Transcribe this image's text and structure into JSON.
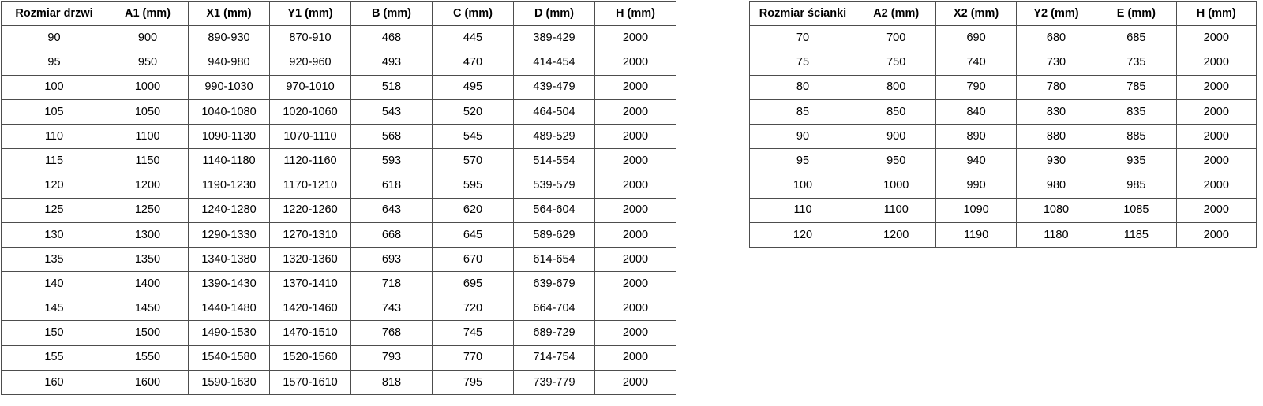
{
  "colors": {
    "background": "#ffffff",
    "border": "#4d4d4d",
    "text": "#000000"
  },
  "tables": {
    "doors": {
      "headers": [
        "Rozmiar drzwi",
        "A1 (mm)",
        "X1 (mm)",
        "Y1 (mm)",
        "B (mm)",
        "C (mm)",
        "D (mm)",
        "H (mm)"
      ],
      "rows": [
        [
          "90",
          "900",
          "890-930",
          "870-910",
          "468",
          "445",
          "389-429",
          "2000"
        ],
        [
          "95",
          "950",
          "940-980",
          "920-960",
          "493",
          "470",
          "414-454",
          "2000"
        ],
        [
          "100",
          "1000",
          "990-1030",
          "970-1010",
          "518",
          "495",
          "439-479",
          "2000"
        ],
        [
          "105",
          "1050",
          "1040-1080",
          "1020-1060",
          "543",
          "520",
          "464-504",
          "2000"
        ],
        [
          "110",
          "1100",
          "1090-1130",
          "1070-1110",
          "568",
          "545",
          "489-529",
          "2000"
        ],
        [
          "115",
          "1150",
          "1140-1180",
          "1120-1160",
          "593",
          "570",
          "514-554",
          "2000"
        ],
        [
          "120",
          "1200",
          "1190-1230",
          "1170-1210",
          "618",
          "595",
          "539-579",
          "2000"
        ],
        [
          "125",
          "1250",
          "1240-1280",
          "1220-1260",
          "643",
          "620",
          "564-604",
          "2000"
        ],
        [
          "130",
          "1300",
          "1290-1330",
          "1270-1310",
          "668",
          "645",
          "589-629",
          "2000"
        ],
        [
          "135",
          "1350",
          "1340-1380",
          "1320-1360",
          "693",
          "670",
          "614-654",
          "2000"
        ],
        [
          "140",
          "1400",
          "1390-1430",
          "1370-1410",
          "718",
          "695",
          "639-679",
          "2000"
        ],
        [
          "145",
          "1450",
          "1440-1480",
          "1420-1460",
          "743",
          "720",
          "664-704",
          "2000"
        ],
        [
          "150",
          "1500",
          "1490-1530",
          "1470-1510",
          "768",
          "745",
          "689-729",
          "2000"
        ],
        [
          "155",
          "1550",
          "1540-1580",
          "1520-1560",
          "793",
          "770",
          "714-754",
          "2000"
        ],
        [
          "160",
          "1600",
          "1590-1630",
          "1570-1610",
          "818",
          "795",
          "739-779",
          "2000"
        ]
      ]
    },
    "walls": {
      "headers": [
        "Rozmiar ścianki",
        "A2 (mm)",
        "X2 (mm)",
        "Y2 (mm)",
        "E (mm)",
        "H (mm)"
      ],
      "rows": [
        [
          "70",
          "700",
          "690",
          "680",
          "685",
          "2000"
        ],
        [
          "75",
          "750",
          "740",
          "730",
          "735",
          "2000"
        ],
        [
          "80",
          "800",
          "790",
          "780",
          "785",
          "2000"
        ],
        [
          "85",
          "850",
          "840",
          "830",
          "835",
          "2000"
        ],
        [
          "90",
          "900",
          "890",
          "880",
          "885",
          "2000"
        ],
        [
          "95",
          "950",
          "940",
          "930",
          "935",
          "2000"
        ],
        [
          "100",
          "1000",
          "990",
          "980",
          "985",
          "2000"
        ],
        [
          "110",
          "1100",
          "1090",
          "1080",
          "1085",
          "2000"
        ],
        [
          "120",
          "1200",
          "1190",
          "1180",
          "1185",
          "2000"
        ]
      ]
    }
  }
}
